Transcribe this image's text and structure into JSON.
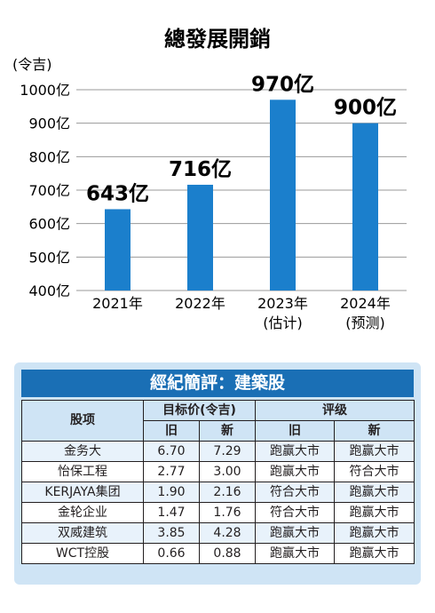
{
  "chart_data": {
    "type": "bar",
    "title": "總發展開銷",
    "unit_label": "(令吉)",
    "categories": [
      "2021年",
      "2022年",
      "2023年\n(估计)",
      "2024年\n(预测)"
    ],
    "values": [
      643,
      716,
      970,
      900
    ],
    "data_labels": [
      "643亿",
      "716亿",
      "970亿",
      "900亿"
    ],
    "yticks": [
      "400亿",
      "500亿",
      "600亿",
      "700亿",
      "800亿",
      "900亿",
      "1000亿"
    ],
    "ylim": [
      400,
      1000
    ],
    "grid": true,
    "colors": {
      "bar": "#1b7fcc",
      "grid": "#9a9a9a"
    }
  },
  "table": {
    "title": "經紀簡評：建築股",
    "col_stock": "股项",
    "col_target": "目标价(令吉)",
    "col_rating": "评级",
    "sub_old": "旧",
    "sub_new": "新",
    "sub_old2": "旧",
    "sub_new2": "新",
    "rows": [
      {
        "name": "金务大",
        "old_price": "6.70",
        "new_price": "7.29",
        "old_rating": "跑赢大市",
        "new_rating": "跑赢大市"
      },
      {
        "name": "怡保工程",
        "old_price": "2.77",
        "new_price": "3.00",
        "old_rating": "跑赢大市",
        "new_rating": "符合大市"
      },
      {
        "name": "KERJAYA集团",
        "old_price": "1.90",
        "new_price": "2.16",
        "old_rating": "符合大市",
        "new_rating": "跑赢大市"
      },
      {
        "name": "金轮企业",
        "old_price": "1.47",
        "new_price": "1.76",
        "old_rating": "符合大市",
        "new_rating": "跑赢大市"
      },
      {
        "name": "双威建筑",
        "old_price": "3.85",
        "new_price": "4.28",
        "old_rating": "跑赢大市",
        "new_rating": "跑赢大市"
      },
      {
        "name": "WCT控股",
        "old_price": "0.66",
        "new_price": "0.88",
        "old_rating": "跑赢大市",
        "new_rating": "跑赢大市"
      }
    ],
    "colors": {
      "panel": "#cfe4f5",
      "header": "#1a6fb5"
    }
  }
}
